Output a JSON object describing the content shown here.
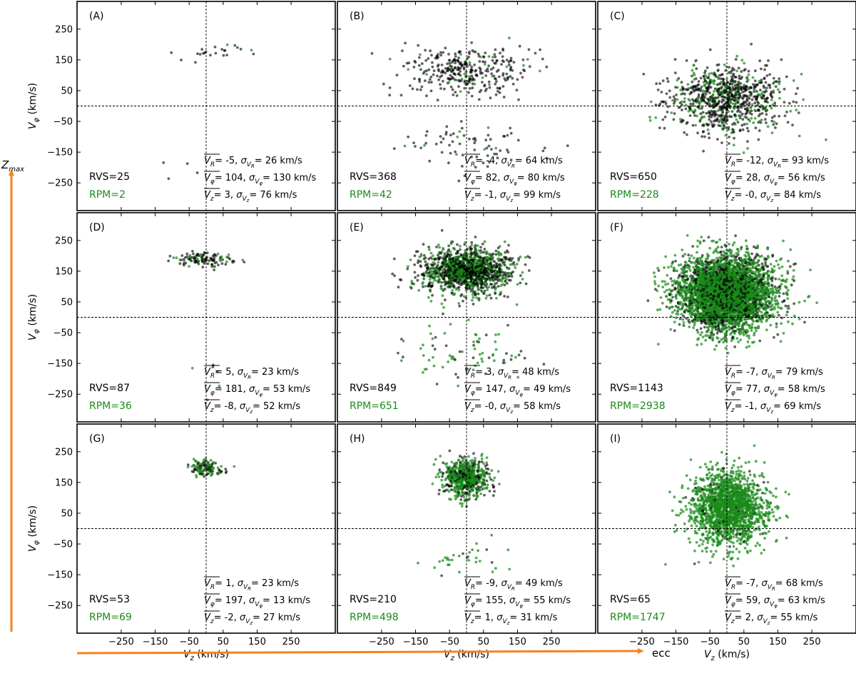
{
  "figure": {
    "vertical_arrow_label": "Z_max",
    "horizontal_arrow_label": "ecc",
    "arrow_color": "#f5821f",
    "rvs_color": "#000000",
    "rpm_color": "#1a8a1a"
  },
  "chart_data": {
    "type": "scatter",
    "grid": false,
    "xlabel_text": "V",
    "xlabel_sub": "z",
    "xlabel_unit": " (km/s)",
    "ylabel_text": "V",
    "ylabel_sub": "φ",
    "ylabel_unit": " (km/s)",
    "xlim": [
      -380,
      380
    ],
    "ylim": [
      -340,
      340
    ],
    "xticks": [
      -250,
      -150,
      -50,
      50,
      150,
      250
    ],
    "yticks": [
      -250,
      -150,
      -50,
      50,
      150,
      250
    ],
    "xtick_labels": [
      "−250",
      "−150",
      "−50",
      "50",
      "150",
      "250"
    ],
    "ytick_labels": [
      "−250",
      "−150",
      "−50",
      "50",
      "150",
      "250"
    ],
    "reference_lines": {
      "x": 0,
      "y": 0
    },
    "unit_text": " km/s",
    "series": [
      {
        "name": "RVS",
        "color": "#000000"
      },
      {
        "name": "RPM",
        "color": "#1a8a1a"
      }
    ],
    "panels": [
      {
        "label": "(A)",
        "rvs_text": "RVS=25",
        "rpm_text": "RPM=2",
        "rvs": 25,
        "rpm": 2,
        "vr_mean": "-5",
        "vr_sigma": "26",
        "vphi_mean": "104",
        "vphi_sigma": "130",
        "vz_mean": "3",
        "vz_sigma": "76",
        "clusters": [
          {
            "cx": 25,
            "cy": 175,
            "sx": 75,
            "sy": 18,
            "rvs": 21,
            "rpm": 2
          },
          {
            "cx": -10,
            "cy": -195,
            "sx": 55,
            "sy": 25,
            "rvs": 4,
            "rpm": 0
          }
        ]
      },
      {
        "label": "(B)",
        "rvs_text": "RVS=368",
        "rpm_text": "RPM=42",
        "rvs": 368,
        "rpm": 42,
        "vr_mean": "-4",
        "vr_sigma": "64",
        "vphi_mean": "82",
        "vphi_sigma": "80",
        "vz_mean": "-1",
        "vz_sigma": "99",
        "clusters": [
          {
            "cx": -5,
            "cy": 115,
            "sx": 95,
            "sy": 38,
            "rvs": 300,
            "rpm": 34
          },
          {
            "cx": 10,
            "cy": -130,
            "sx": 105,
            "sy": 40,
            "rvs": 68,
            "rpm": 8
          }
        ]
      },
      {
        "label": "(C)",
        "rvs_text": "RVS=650",
        "rpm_text": "RPM=228",
        "rvs": 650,
        "rpm": 228,
        "vr_mean": "-12",
        "vr_sigma": "93",
        "vphi_mean": "28",
        "vphi_sigma": "56",
        "vz_mean": "-0",
        "vz_sigma": "84",
        "clusters": [
          {
            "cx": 0,
            "cy": 25,
            "sx": 85,
            "sy": 55,
            "rvs": 650,
            "rpm": 228
          }
        ]
      },
      {
        "label": "(D)",
        "rvs_text": "RVS=87",
        "rpm_text": "RPM=36",
        "rvs": 87,
        "rpm": 36,
        "vr_mean": "5",
        "vr_sigma": "23",
        "vphi_mean": "181",
        "vphi_sigma": "53",
        "vz_mean": "-8",
        "vz_sigma": "52",
        "clusters": [
          {
            "cx": 0,
            "cy": 187,
            "sx": 45,
            "sy": 11,
            "rvs": 84,
            "rpm": 33
          },
          {
            "cx": 20,
            "cy": -180,
            "sx": 40,
            "sy": 30,
            "rvs": 3,
            "rpm": 3
          }
        ]
      },
      {
        "label": "(E)",
        "rvs_text": "RVS=849",
        "rpm_text": "RPM=651",
        "rvs": 849,
        "rpm": 651,
        "vr_mean": "3",
        "vr_sigma": "48",
        "vphi_mean": "147",
        "vphi_sigma": "49",
        "vz_mean": "-0",
        "vz_sigma": "58",
        "clusters": [
          {
            "cx": 0,
            "cy": 152,
            "sx": 62,
            "sy": 36,
            "rvs": 820,
            "rpm": 600
          },
          {
            "cx": 0,
            "cy": -120,
            "sx": 100,
            "sy": 45,
            "rvs": 29,
            "rpm": 51
          }
        ]
      },
      {
        "label": "(F)",
        "rvs_text": "RVS=1143",
        "rpm_text": "RPM=2938",
        "rvs": 1143,
        "rpm": 2938,
        "vr_mean": "-7",
        "vr_sigma": "79",
        "vphi_mean": "77",
        "vphi_sigma": "58",
        "vz_mean": "-1",
        "vz_sigma": "69",
        "clusters": [
          {
            "cx": 0,
            "cy": 80,
            "sx": 70,
            "sy": 60,
            "rvs": 1143,
            "rpm": 2938
          }
        ]
      },
      {
        "label": "(G)",
        "rvs_text": "RVS=53",
        "rpm_text": "RPM=69",
        "rvs": 53,
        "rpm": 69,
        "vr_mean": "1",
        "vr_sigma": "23",
        "vphi_mean": "197",
        "vphi_sigma": "13",
        "vz_mean": "-2",
        "vz_sigma": "27",
        "clusters": [
          {
            "cx": -2,
            "cy": 197,
            "sx": 26,
            "sy": 13,
            "rvs": 53,
            "rpm": 69
          }
        ]
      },
      {
        "label": "(H)",
        "rvs_text": "RVS=210",
        "rpm_text": "RPM=498",
        "rvs": 210,
        "rpm": 498,
        "vr_mean": "-9",
        "vr_sigma": "49",
        "vphi_mean": "155",
        "vphi_sigma": "55",
        "vz_mean": "1",
        "vz_sigma": "31",
        "clusters": [
          {
            "cx": 0,
            "cy": 165,
            "sx": 32,
            "sy": 30,
            "rvs": 205,
            "rpm": 470
          },
          {
            "cx": 10,
            "cy": -100,
            "sx": 75,
            "sy": 35,
            "rvs": 5,
            "rpm": 28
          }
        ]
      },
      {
        "label": "(I)",
        "rvs_text": "RVS=65",
        "rpm_text": "RPM=1747",
        "rvs": 65,
        "rpm": 1747,
        "vr_mean": "-7",
        "vr_sigma": "68",
        "vphi_mean": "59",
        "vphi_sigma": "63",
        "vz_mean": "2",
        "vz_sigma": "55",
        "clusters": [
          {
            "cx": 5,
            "cy": 65,
            "sx": 55,
            "sy": 60,
            "rvs": 65,
            "rpm": 1747
          }
        ]
      }
    ]
  }
}
